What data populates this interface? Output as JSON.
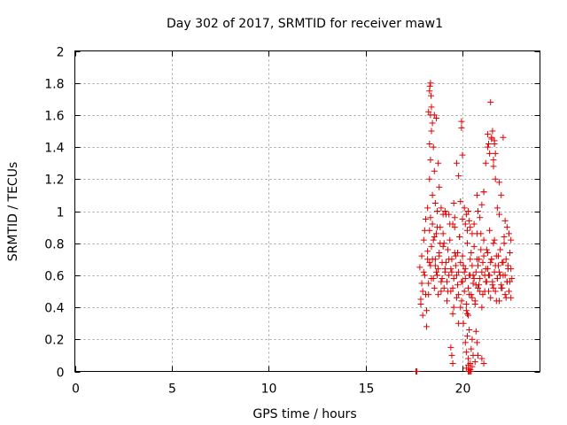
{
  "chart_data": {
    "type": "scatter",
    "title": "Day 302 of 2017, SRMTID for receiver maw1",
    "xlabel": "GPS time / hours",
    "ylabel": "SRMTID / TECUs",
    "xlim": [
      0,
      24
    ],
    "ylim": [
      0,
      2
    ],
    "xticks": [
      0,
      5,
      10,
      15,
      20
    ],
    "yticks": [
      0,
      0.2,
      0.4,
      0.6,
      0.8,
      1,
      1.2,
      1.4,
      1.6,
      1.8,
      2
    ],
    "xtick_labels": [
      "0",
      "5",
      "10",
      "15",
      "20"
    ],
    "ytick_labels": [
      "0",
      "0.2",
      "0.4",
      "0.6",
      "0.8",
      "1",
      "1.2",
      "1.4",
      "1.6",
      "1.8",
      "2"
    ],
    "grid": true,
    "marker": "plus",
    "color": "#e00000",
    "series": [
      {
        "x": [
          17.6,
          17.65,
          17.8,
          17.85,
          17.9,
          17.95,
          18.0,
          18.05,
          18.1,
          18.15,
          18.2,
          18.25,
          18.3,
          18.35,
          18.4,
          18.45,
          18.5,
          18.55,
          18.6,
          18.65,
          18.7,
          18.75,
          18.8,
          18.85,
          18.9,
          18.95,
          19.0,
          19.05,
          19.1,
          19.15,
          19.2,
          19.25,
          19.3,
          19.35,
          19.4,
          19.45,
          19.5,
          19.55,
          19.6,
          19.65,
          19.7,
          19.75,
          19.8,
          19.85,
          19.9,
          19.95,
          20.0,
          20.05,
          20.1,
          20.15,
          20.2,
          20.25,
          20.3,
          20.35,
          20.4,
          20.45,
          20.5,
          20.55,
          20.6,
          20.65,
          20.7,
          20.75,
          20.8,
          20.85,
          20.9,
          20.95,
          21.0,
          21.05,
          21.1,
          21.15,
          21.2,
          21.25,
          21.3,
          21.35,
          21.4,
          21.45,
          21.5,
          21.55,
          21.6,
          21.65,
          21.7,
          21.75,
          21.8,
          21.85,
          21.9,
          21.95,
          22.0,
          22.05,
          22.1,
          22.15,
          22.2,
          22.25,
          22.3,
          22.35,
          22.4,
          22.45,
          22.5,
          22.55,
          17.9,
          18.0,
          18.1,
          18.2,
          18.3,
          18.4,
          18.5,
          18.6,
          18.7,
          18.8,
          18.9,
          19.0,
          19.1,
          19.2,
          19.3,
          19.4,
          19.5,
          19.6,
          19.7,
          19.8,
          19.9,
          20.0,
          20.1,
          20.2,
          20.3,
          20.4,
          20.5,
          20.6,
          20.7,
          20.8,
          20.9,
          21.0,
          21.1,
          21.2,
          21.3,
          21.4,
          21.5,
          21.6,
          21.7,
          21.8,
          21.9,
          22.0,
          22.1,
          22.2,
          22.3,
          22.4,
          22.5,
          17.85,
          17.95,
          18.05,
          18.15,
          18.25,
          18.35,
          18.45,
          18.55,
          18.65,
          18.75,
          18.85,
          18.95,
          19.05,
          19.15,
          19.25,
          19.35,
          19.45,
          19.55,
          19.65,
          19.75,
          19.85,
          19.95,
          20.05,
          20.15,
          20.25,
          20.35,
          20.45,
          20.55,
          20.65,
          20.75,
          20.85,
          20.95,
          21.05,
          21.15,
          21.25,
          21.35,
          21.45,
          21.55,
          21.65,
          21.75,
          21.85,
          21.95,
          22.05,
          22.15,
          22.25,
          22.35,
          22.45,
          18.2,
          18.3,
          18.35,
          18.4,
          18.45,
          18.5,
          18.55,
          18.6,
          18.65,
          18.7,
          18.75,
          18.8,
          18.9,
          19.0,
          19.1,
          19.3,
          19.5,
          19.55,
          19.6,
          19.7,
          19.8,
          19.9,
          20.0,
          20.1,
          20.15,
          20.2,
          20.25,
          20.3,
          20.35,
          20.4,
          20.5,
          20.6,
          20.75,
          20.8,
          20.9,
          21.0,
          21.1,
          21.2,
          21.3,
          21.4,
          21.5,
          21.6,
          21.7,
          21.8,
          21.9,
          22.0,
          22.2,
          22.3,
          22.4,
          22.5,
          18.25,
          18.3,
          18.35,
          18.45,
          18.55,
          19.95,
          20.0,
          21.1,
          21.3,
          21.35,
          21.5,
          21.55,
          21.65,
          21.7,
          22.1,
          18.3,
          18.35,
          18.4,
          19.95,
          21.45,
          21.6,
          21.9,
          18.32,
          18.38,
          21.65,
          19.4,
          19.45,
          19.5,
          19.8,
          20.15,
          20.2,
          20.25,
          20.3,
          20.35,
          20.4,
          20.45,
          20.5,
          20.55,
          20.65,
          20.7,
          20.75,
          20.2,
          20.3,
          20.4,
          20.5,
          20.35,
          20.45,
          20.8,
          21.0,
          21.1,
          20.3,
          20.4
        ],
        "y": [
          0.0,
          0.0,
          0.65,
          0.45,
          0.72,
          0.5,
          0.82,
          0.6,
          0.95,
          0.38,
          0.7,
          0.55,
          0.88,
          0.66,
          0.78,
          0.92,
          0.58,
          0.84,
          0.7,
          0.62,
          0.9,
          0.48,
          0.74,
          0.8,
          0.56,
          0.68,
          0.86,
          0.52,
          0.64,
          0.98,
          0.44,
          0.76,
          0.6,
          0.82,
          0.5,
          0.7,
          0.36,
          0.58,
          0.9,
          0.66,
          0.46,
          0.74,
          0.62,
          0.84,
          0.4,
          0.56,
          0.72,
          0.3,
          0.5,
          0.64,
          0.42,
          0.8,
          0.35,
          0.6,
          0.7,
          0.48,
          0.66,
          0.55,
          0.78,
          0.44,
          0.62,
          0.86,
          0.52,
          0.7,
          0.58,
          0.76,
          0.4,
          0.68,
          0.82,
          0.5,
          0.64,
          0.56,
          0.74,
          0.6,
          0.88,
          0.46,
          0.7,
          0.54,
          0.8,
          0.62,
          0.5,
          0.72,
          0.58,
          0.66,
          0.44,
          0.76,
          0.52,
          0.68,
          0.6,
          0.84,
          0.48,
          0.7,
          0.56,
          0.64,
          0.5,
          0.74,
          0.46,
          0.58,
          0.55,
          0.62,
          0.48,
          0.75,
          0.68,
          0.58,
          0.82,
          0.66,
          0.6,
          0.72,
          0.5,
          0.78,
          0.62,
          0.56,
          0.7,
          0.64,
          0.52,
          0.74,
          0.6,
          0.48,
          0.68,
          0.56,
          0.62,
          0.38,
          0.52,
          0.6,
          0.46,
          0.58,
          0.54,
          0.66,
          0.5,
          0.62,
          0.72,
          0.56,
          0.64,
          0.6,
          0.7,
          0.52,
          0.66,
          0.58,
          0.62,
          0.54,
          0.68,
          0.6,
          0.56,
          0.5,
          0.64,
          0.42,
          0.35,
          0.88,
          0.28,
          0.48,
          0.96,
          0.7,
          0.52,
          0.86,
          0.64,
          0.9,
          0.58,
          0.8,
          0.68,
          0.5,
          0.92,
          0.62,
          0.4,
          0.72,
          0.54,
          0.84,
          0.44,
          0.66,
          0.58,
          0.36,
          0.48,
          0.74,
          0.6,
          0.42,
          0.7,
          0.54,
          0.86,
          0.48,
          0.6,
          0.76,
          0.5,
          0.68,
          0.56,
          0.82,
          0.44,
          0.72,
          0.6,
          0.52,
          0.8,
          0.46,
          0.66,
          0.56,
          1.02,
          1.2,
          1.32,
          1.5,
          1.1,
          1.4,
          1.25,
          1.05,
          1.58,
          1.0,
          1.3,
          1.15,
          1.02,
          0.98,
          1.0,
          0.98,
          0.92,
          1.05,
          0.96,
          1.3,
          1.22,
          1.06,
          0.95,
          1.02,
          0.92,
          0.98,
          0.88,
          1.0,
          0.94,
          0.9,
          0.86,
          0.92,
          1.1,
          1.0,
          0.96,
          1.04,
          1.12,
          1.3,
          1.4,
          1.36,
          1.45,
          1.28,
          1.2,
          1.02,
          0.98,
          1.1,
          0.94,
          0.9,
          0.86,
          0.82,
          1.62,
          1.42,
          1.6,
          1.55,
          1.6,
          1.56,
          1.35,
          1.12,
          1.48,
          1.42,
          1.46,
          1.5,
          1.44,
          1.36,
          1.46,
          1.75,
          1.8,
          1.65,
          1.52,
          1.68,
          1.32,
          1.18,
          1.78,
          1.72,
          1.42,
          0.15,
          0.1,
          0.05,
          0.3,
          0.18,
          0.12,
          0.22,
          0.08,
          0.26,
          0.05,
          0.14,
          0.2,
          0.1,
          0.06,
          0.25,
          0.18,
          0.02,
          0.04,
          0.01,
          0.03,
          0.0,
          0.0,
          0.1,
          0.08,
          0.05,
          0.0,
          0.0
        ]
      }
    ]
  }
}
